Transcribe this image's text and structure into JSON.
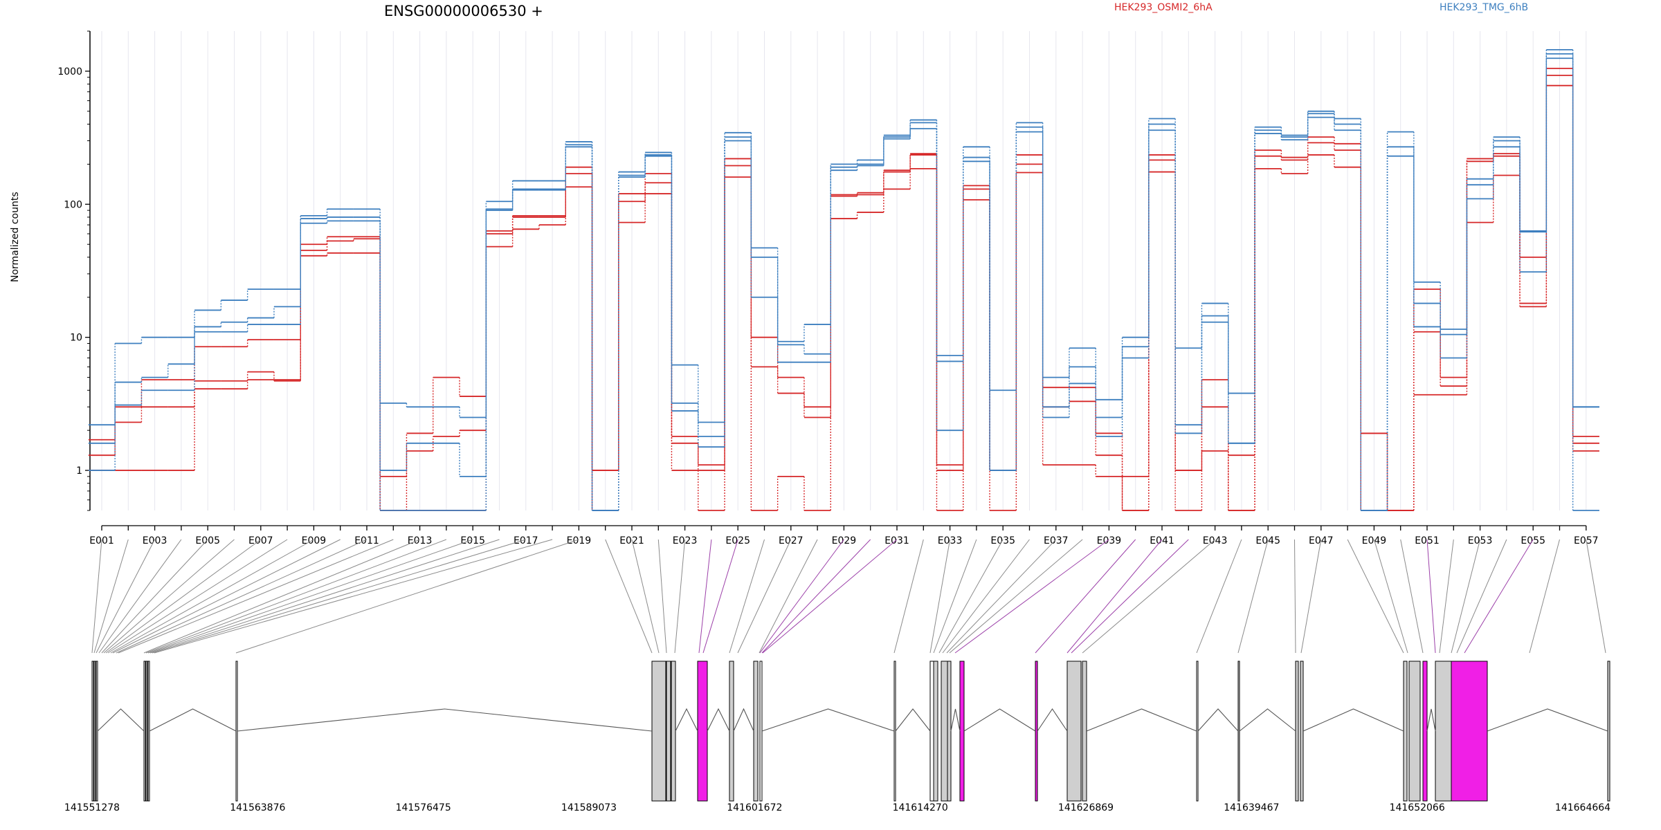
{
  "chart_data": {
    "type": "line",
    "title": "ENSG00000006530 +",
    "ylabel": "Normalized counts",
    "xlabel": "",
    "yscale": "log",
    "ylim": [
      0.5,
      2000
    ],
    "yticks": [
      {
        "v": 1,
        "label": "1"
      },
      {
        "v": 10,
        "label": "10"
      },
      {
        "v": 100,
        "label": "100"
      },
      {
        "v": 1000,
        "label": "1000"
      }
    ],
    "legend": {
      "placement": "top",
      "entries": [
        "HEK293_OSMI2_6hA",
        "HEK293_TMG_6hB"
      ]
    },
    "categories": [
      "E001",
      "E002",
      "E003",
      "E004",
      "E005",
      "E006",
      "E007",
      "E008",
      "E009",
      "E010",
      "E011",
      "E012",
      "E013",
      "E014",
      "E015",
      "E016",
      "E017",
      "E018",
      "E019",
      "E020",
      "E021",
      "E022",
      "E023",
      "E024",
      "E025",
      "E026",
      "E027",
      "E028",
      "E029",
      "E030",
      "E031",
      "E032",
      "E033",
      "E034",
      "E035",
      "E036",
      "E037",
      "E038",
      "E039",
      "E040",
      "E041",
      "E042",
      "E043",
      "E044",
      "E045",
      "E046",
      "E047",
      "E048",
      "E049",
      "E050",
      "E051",
      "E052",
      "E053",
      "E054",
      "E055",
      "E056",
      "E057"
    ],
    "category_labels_shown": [
      "E001",
      "E003",
      "E005",
      "E007",
      "E009",
      "E011",
      "E013",
      "E015",
      "E017",
      "E019",
      "E021",
      "E023",
      "E025",
      "E027",
      "E029",
      "E031",
      "E033",
      "E035",
      "E037",
      "E039",
      "E041",
      "E043",
      "E045",
      "E047",
      "E049",
      "E051",
      "E053",
      "E055",
      "E057"
    ],
    "series": [
      {
        "group": "HEK293_OSMI2_6hA",
        "color": "#d62728",
        "values": [
          1.7,
          3.0,
          4.8,
          4.8,
          8.5,
          8.5,
          9.6,
          9.6,
          50,
          57,
          57,
          0.5,
          1.9,
          5.0,
          3.6,
          63,
          82,
          82,
          190,
          1.0,
          120,
          170,
          1.8,
          1.1,
          220,
          10,
          5.0,
          3.0,
          118,
          122,
          180,
          240,
          1.1,
          138,
          1.0,
          235,
          4.2,
          4.2,
          1.9,
          0.5,
          235,
          1.0,
          4.8,
          0.5,
          255,
          225,
          320,
          285,
          1.9,
          0.5,
          23,
          5.0,
          220,
          240,
          40,
          1050,
          1.8
        ]
      },
      {
        "group": "HEK293_OSMI2_6hA",
        "color": "#d62728",
        "values": [
          1.3,
          2.3,
          3.0,
          3.0,
          4.7,
          4.7,
          5.5,
          4.7,
          45,
          53,
          55,
          0.9,
          1.4,
          1.8,
          2.0,
          60,
          80,
          80,
          170,
          1.0,
          105,
          145,
          1.6,
          1.0,
          195,
          6.0,
          3.8,
          2.5,
          115,
          118,
          175,
          235,
          1.0,
          130,
          1.0,
          200,
          3.0,
          3.3,
          1.3,
          0.9,
          215,
          1.0,
          3.0,
          1.3,
          230,
          215,
          290,
          255,
          1.9,
          0.5,
          11,
          4.3,
          210,
          230,
          18,
          930,
          1.6
        ]
      },
      {
        "group": "HEK293_OSMI2_6hA",
        "color": "#d62728",
        "values": [
          1.0,
          1.0,
          1.0,
          1.0,
          4.1,
          4.1,
          4.8,
          4.8,
          41,
          43,
          43,
          0.5,
          0.5,
          0.5,
          0.5,
          48,
          65,
          70,
          135,
          0.5,
          73,
          120,
          1.0,
          0.5,
          160,
          0.5,
          0.9,
          0.5,
          78,
          87,
          130,
          185,
          0.5,
          108,
          0.5,
          173,
          1.1,
          1.1,
          0.9,
          0.5,
          175,
          0.5,
          1.4,
          0.5,
          185,
          170,
          235,
          190,
          0.5,
          0.5,
          3.7,
          3.7,
          73,
          165,
          17,
          780,
          1.4
        ]
      },
      {
        "group": "HEK293_TMG_6hB",
        "color": "#3d7fbf",
        "values": [
          2.2,
          9.0,
          10,
          10,
          16,
          19,
          23,
          23,
          82,
          92,
          92,
          3.2,
          3.0,
          3.0,
          2.5,
          105,
          150,
          150,
          295,
          0.5,
          175,
          245,
          6.2,
          2.3,
          345,
          47,
          9.3,
          12.5,
          200,
          215,
          330,
          430,
          7.3,
          270,
          4.0,
          410,
          5.0,
          8.3,
          3.4,
          10,
          440,
          8.3,
          18,
          3.8,
          380,
          330,
          500,
          440,
          0.5,
          350,
          26,
          11.5,
          155,
          320,
          63,
          1450,
          3.0
        ]
      },
      {
        "group": "HEK293_TMG_6hB",
        "color": "#3d7fbf",
        "values": [
          1.6,
          4.6,
          5.0,
          6.3,
          12,
          13,
          14,
          17,
          78,
          80,
          80,
          1.0,
          1.6,
          1.6,
          0.9,
          92,
          130,
          130,
          280,
          0.5,
          165,
          235,
          3.2,
          1.5,
          320,
          40,
          8.8,
          7.5,
          190,
          200,
          320,
          410,
          6.6,
          225,
          1.0,
          380,
          3.0,
          6.0,
          2.5,
          8.5,
          400,
          2.2,
          14.5,
          1.6,
          360,
          320,
          480,
          400,
          0.5,
          270,
          18,
          10.5,
          140,
          300,
          62,
          1350,
          3.0
        ]
      },
      {
        "group": "HEK293_TMG_6hB",
        "color": "#3d7fbf",
        "values": [
          1.0,
          3.1,
          4.0,
          4.0,
          11,
          11,
          12.5,
          12.5,
          72,
          75,
          75,
          0.5,
          0.5,
          0.5,
          0.5,
          90,
          128,
          128,
          270,
          0.5,
          160,
          230,
          2.8,
          1.8,
          300,
          20,
          6.5,
          6.5,
          180,
          195,
          310,
          370,
          2.0,
          210,
          1.0,
          350,
          2.5,
          4.5,
          1.8,
          7.0,
          360,
          1.9,
          13,
          1.6,
          340,
          305,
          450,
          360,
          0.5,
          230,
          12,
          7.0,
          110,
          270,
          31,
          1250,
          0.5
        ]
      }
    ],
    "annotation_axis": {
      "coord_labels": [
        "141551278",
        "141563876",
        "141576475",
        "141589073",
        "141601672",
        "141614270",
        "141626869",
        "141639467",
        "141652066",
        "141664664"
      ]
    }
  }
}
